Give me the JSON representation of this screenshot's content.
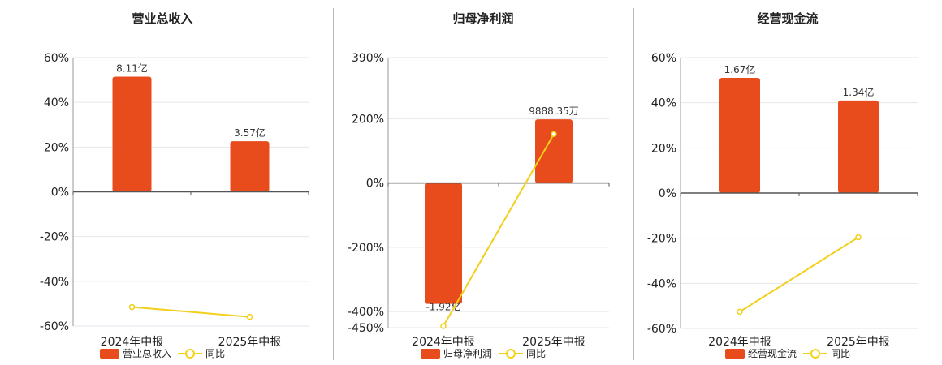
{
  "colors": {
    "bar": "#e84c1c",
    "line": "#f2cf1b",
    "grid": "#e6e6ee",
    "axis": "#555555"
  },
  "legend": {
    "line_label": "同比"
  },
  "chart_data": [
    {
      "type": "bar",
      "title": "营业总收入",
      "categories": [
        "2024年中报",
        "2025年中报"
      ],
      "series": [
        {
          "name": "营业总收入",
          "type": "bar",
          "values": [
            51.5,
            22.6
          ],
          "value_labels": [
            "8.11亿",
            "3.57亿"
          ]
        },
        {
          "name": "同比",
          "type": "line",
          "values": [
            -51.5,
            -55.9
          ]
        }
      ],
      "ylim": [
        -60,
        60
      ],
      "yticks": [
        60,
        40,
        20,
        0,
        -20,
        -40,
        -60
      ],
      "ytick_labels": [
        "60%",
        "40%",
        "20%",
        "0%",
        "-20%",
        "-40%",
        "-60%"
      ]
    },
    {
      "type": "bar",
      "title": "归母净利润",
      "categories": [
        "2024年中报",
        "2025年中报"
      ],
      "series": [
        {
          "name": "归母净利润",
          "type": "bar",
          "values": [
            -376,
            198
          ],
          "value_labels": [
            "-1.92亿",
            "9888.35万"
          ]
        },
        {
          "name": "同比",
          "type": "line",
          "values": [
            -445,
            152
          ]
        }
      ],
      "ylim": [
        -450,
        390
      ],
      "yticks": [
        390,
        200,
        0,
        -200,
        -400,
        -450
      ],
      "ytick_labels": [
        "390%",
        "200%",
        "0%",
        "-200%",
        "-400%",
        "-450%"
      ]
    },
    {
      "type": "bar",
      "title": "经营现金流",
      "categories": [
        "2024年中报",
        "2025年中报"
      ],
      "series": [
        {
          "name": "经营现金流",
          "type": "bar",
          "values": [
            51,
            41
          ],
          "value_labels": [
            "1.67亿",
            "1.34亿"
          ]
        },
        {
          "name": "同比",
          "type": "line",
          "values": [
            -52.6,
            -19.6
          ]
        }
      ],
      "ylim": [
        -60,
        60
      ],
      "yticks": [
        60,
        40,
        20,
        0,
        -20,
        -40,
        -60
      ],
      "ytick_labels": [
        "60%",
        "40%",
        "20%",
        "0%",
        "-20%",
        "-40%",
        "-60%"
      ]
    }
  ]
}
